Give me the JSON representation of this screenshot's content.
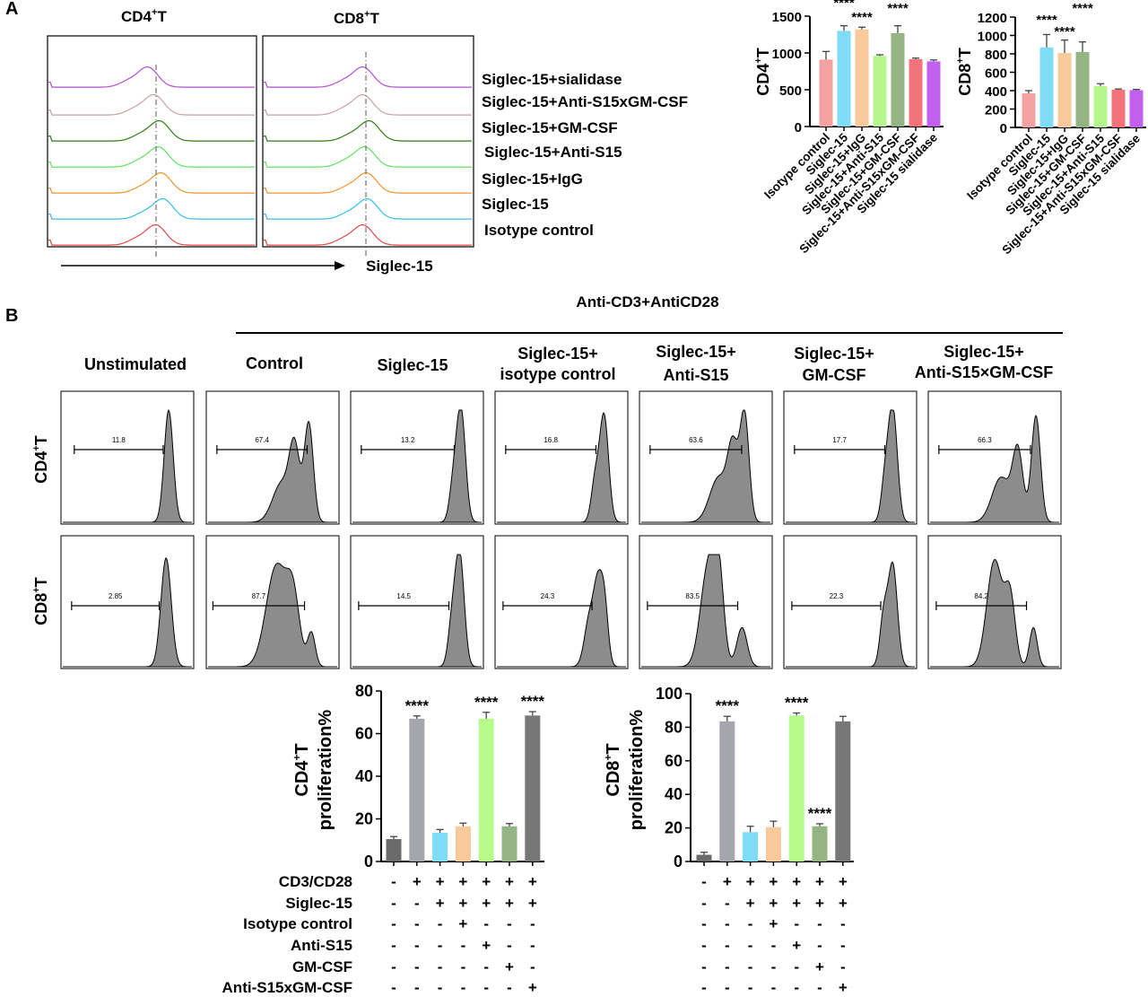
{
  "panel_labels": [
    "A",
    "B"
  ],
  "panelA": {
    "hist_titles": [
      {
        "main": "CD4",
        "sup": "+",
        "tail": "T"
      },
      {
        "main": "CD8",
        "sup": "+",
        "tail": "T"
      }
    ],
    "row_labels": [
      "Siglec-15+sialidase",
      "Siglec-15+Anti-S15xGM-CSF",
      "Siglec-15+GM-CSF",
      "Siglec-15+Anti-S15",
      "Siglec-15+IgG",
      "Siglec-15",
      "Isotype control"
    ],
    "row_colors": [
      "#b44fd6",
      "#c9a0a0",
      "#2e7d12",
      "#5ee25e",
      "#f0922e",
      "#32bfe8",
      "#e04848"
    ],
    "x_axis_label": "Siglec-15"
  },
  "panelB": {
    "group_header": "Anti-CD3+AntiCD28",
    "col_titles": [
      [
        "Unstimulated"
      ],
      [
        "Control"
      ],
      [
        "Siglec-15"
      ],
      [
        "Siglec-15+",
        "isotype control"
      ],
      [
        "Siglec-15+",
        "Anti-S15"
      ],
      [
        "Siglec-15+",
        "GM-CSF"
      ],
      [
        "Siglec-15+",
        "Anti-S15×GM-CSF"
      ]
    ],
    "row_titles": [
      {
        "main": "CD4",
        "sup": "+",
        "tail": "T"
      },
      {
        "main": "CD8",
        "sup": "+",
        "tail": "T"
      }
    ],
    "gate_values": [
      [
        "11.8",
        "67.4",
        "13.2",
        "16.8",
        "63.6",
        "17.7",
        "66.3"
      ],
      [
        "2.85",
        "87.7",
        "14.5",
        "24.3",
        "83.5",
        "22.3",
        "84.2"
      ]
    ],
    "table_row_labels": [
      "CD3/CD28",
      "Siglec-15",
      "Isotype control",
      "Anti-S15",
      "GM-CSF",
      "Anti-S15xGM-CSF"
    ],
    "table_signs": [
      [
        "-",
        "+",
        "+",
        "+",
        "+",
        "+",
        "+"
      ],
      [
        "-",
        "-",
        "+",
        "+",
        "+",
        "+",
        "+"
      ],
      [
        "-",
        "-",
        "-",
        "+",
        "-",
        "-",
        "-"
      ],
      [
        "-",
        "-",
        "-",
        "-",
        "+",
        "-",
        "-"
      ],
      [
        "-",
        "-",
        "-",
        "-",
        "-",
        "+",
        "-"
      ],
      [
        "-",
        "-",
        "-",
        "-",
        "-",
        "-",
        "+"
      ]
    ]
  },
  "chart_data": [
    {
      "type": "bar",
      "id": "A-CD4",
      "ylabel": {
        "main": "CD4",
        "sup": "+",
        "tail": "T"
      },
      "categories": [
        "Isotype control",
        "Siglec-15",
        "Siglec-15+IgG",
        "Siglec-15+Anti-S15",
        "Siglec-15+GM-CSF",
        "Siglec-15+Anti-S15xGM-CSF",
        "Siglec-15 sialidase"
      ],
      "values": [
        910,
        1300,
        1320,
        960,
        1270,
        915,
        885
      ],
      "errors": [
        110,
        70,
        30,
        15,
        100,
        15,
        20
      ],
      "colors": [
        "#f4a1a1",
        "#7fdcf6",
        "#f8c99a",
        "#b7f58d",
        "#94b583",
        "#f4737a",
        "#c05ff0"
      ],
      "significance": [
        "",
        "****",
        "****",
        "",
        "****",
        "",
        ""
      ],
      "ylim": [
        0,
        1500
      ],
      "yticks": [
        0,
        500,
        1000,
        1500
      ]
    },
    {
      "type": "bar",
      "id": "A-CD8",
      "ylabel": {
        "main": "CD8",
        "sup": "+",
        "tail": "T"
      },
      "categories": [
        "Isotype control",
        "Siglec-15",
        "Siglec-15+IgG",
        "Siglec-15+GM-CSF",
        "Siglec-15+Anti-S15",
        "Siglec-15+Anti-S15xGM-CSF",
        "Siglec-15 sialidase"
      ],
      "values": [
        370,
        870,
        810,
        820,
        450,
        410,
        405
      ],
      "errors": [
        30,
        140,
        140,
        110,
        25,
        8,
        8
      ],
      "colors": [
        "#f4a1a1",
        "#7fdcf6",
        "#f8c99a",
        "#94b583",
        "#b7f58d",
        "#f4737a",
        "#c05ff0"
      ],
      "significance": [
        "",
        "****",
        "****",
        "****",
        "",
        "",
        ""
      ],
      "ylim": [
        0,
        1200
      ],
      "yticks": [
        0,
        200,
        400,
        600,
        800,
        1000,
        1200
      ]
    },
    {
      "type": "bar",
      "id": "B-CD4",
      "ylabel_line1": {
        "main": "CD4",
        "sup": "+",
        "tail": "T"
      },
      "ylabel_line2": "proliferation%",
      "values": [
        10.5,
        67,
        13.5,
        16.5,
        67,
        16.5,
        68.5
      ],
      "errors": [
        1.2,
        1.3,
        1.5,
        1.5,
        3,
        1.3,
        1.8
      ],
      "colors": [
        "#6b6b6b",
        "#a5a5ad",
        "#7fdcf6",
        "#f8c99a",
        "#b7fb8a",
        "#94b583",
        "#777777"
      ],
      "significance": [
        "",
        "****",
        "",
        "",
        "****",
        "",
        "****"
      ],
      "ylim": [
        0,
        80
      ],
      "yticks": [
        0,
        20,
        40,
        60,
        80
      ]
    },
    {
      "type": "bar",
      "id": "B-CD8",
      "ylabel_line1": {
        "main": "CD8",
        "sup": "+",
        "tail": "T"
      },
      "ylabel_line2": "proliferation%",
      "values": [
        4,
        83.5,
        17.5,
        20.5,
        87,
        21,
        83.5
      ],
      "errors": [
        1.5,
        3,
        3.5,
        3.5,
        1.5,
        1.5,
        3
      ],
      "colors": [
        "#6b6b6b",
        "#a5a5ad",
        "#7fdcf6",
        "#f8c99a",
        "#b7fb8a",
        "#94b583",
        "#777777"
      ],
      "significance": [
        "",
        "****",
        "",
        "",
        "****",
        "****",
        ""
      ],
      "ylim": [
        0,
        100
      ],
      "yticks": [
        0,
        20,
        40,
        60,
        80,
        100
      ]
    }
  ]
}
